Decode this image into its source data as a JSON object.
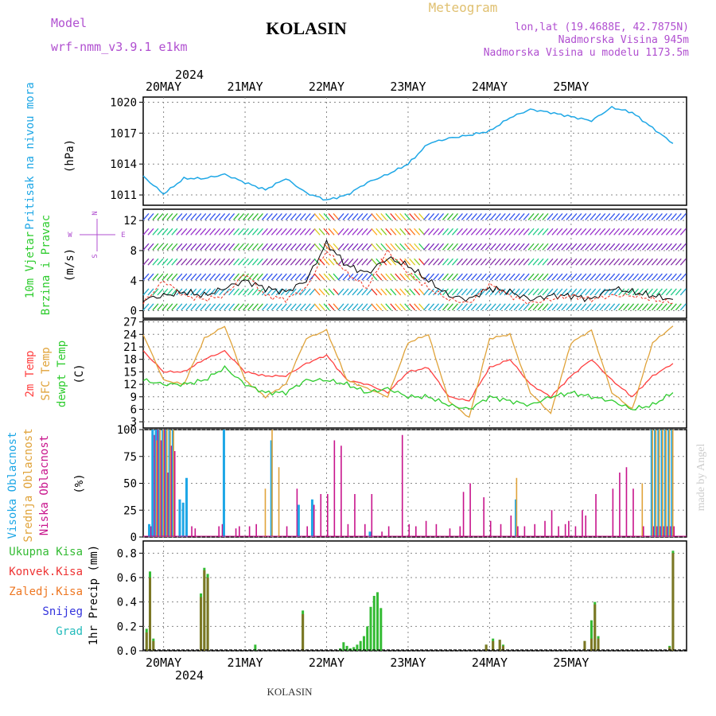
{
  "header": {
    "model_label": "Model",
    "model_name": "wrf-nmm_v3.9.1 e1km",
    "station": "KOLASIN",
    "product": "Meteogram",
    "lonlat": "lon,lat (19.4688E, 42.7875N)",
    "elevation": "Nadmorska Visina 945m",
    "model_elevation": "Nadmorska Visina u modelu 1173.5m",
    "year": "2024",
    "footer_station": "KOLASIN",
    "credit": "made by Angel"
  },
  "days": [
    "20MAY",
    "21MAY",
    "22MAY",
    "23MAY",
    "24MAY",
    "25MAY"
  ],
  "colors": {
    "pressure": "#1ea7e6",
    "temp2m": "#ff4040",
    "sfc": "#e0a33a",
    "dewpt": "#2ecc2e",
    "cloud_high": "#1ea7e6",
    "cloud_mid": "#e0a33a",
    "cloud_low": "#c8148c",
    "precip_total": "#33bb33",
    "precip_conv": "#ee3333",
    "precip_snow": "#3333dd",
    "precip_grad": "#22bbbb"
  },
  "panels": {
    "pressure": {
      "label1": "Pritisak na nivou mora",
      "unit": "(hPa)"
    },
    "wind": {
      "label1": "10m Vjetar",
      "label2": "Brzina i Pravac",
      "unit": "(m/s)",
      "compass_n": "N",
      "compass_w": "W",
      "compass_e": "E",
      "compass_s": "S"
    },
    "temp": {
      "label1": "2m Temp",
      "label2": "SFC Temp",
      "label3": "dewpt Temp",
      "unit": "(C)"
    },
    "cloud": {
      "label1": "Visoka Oblacnost",
      "label2": "Srednja Oblacnost",
      "label3": "Niska Oblacnost",
      "unit": "(%)"
    },
    "precip": {
      "label_total": "Ukupna Kisa",
      "label_conv": "Konvek.Kisa",
      "label_frz": "Zaledj.Kisa",
      "label_snow": "Snijeg",
      "label_grad": "Grad",
      "unit": "1hr Precip (mm)"
    }
  },
  "chart_data": [
    {
      "type": "line",
      "panel": "pressure",
      "xlabel": "",
      "ylabel": "(hPa)",
      "y_ticks": [
        1011,
        1014,
        1017,
        1020
      ],
      "ylim": [
        1010,
        1020.5
      ],
      "x_hours": [
        0,
        6,
        12,
        18,
        24,
        30,
        36,
        42,
        48,
        54,
        60,
        66,
        72,
        78,
        84,
        90,
        96,
        102,
        108,
        114,
        120,
        126,
        132,
        138,
        144,
        150,
        156
      ],
      "values": [
        1012.8,
        1011.1,
        1012.6,
        1012.6,
        1013.0,
        1012.2,
        1011.5,
        1012.6,
        1011.2,
        1010.5,
        1011.0,
        1012.2,
        1013.0,
        1014.0,
        1016.0,
        1016.5,
        1016.8,
        1017.2,
        1018.5,
        1019.3,
        1019.0,
        1018.6,
        1018.2,
        1019.5,
        1019.0,
        1017.5,
        1016.0
      ]
    },
    {
      "type": "scatter",
      "panel": "wind",
      "ylabel": "(m/s)",
      "y_ticks": [
        0,
        4,
        8,
        12
      ],
      "ylim": [
        -1,
        13.5
      ],
      "x_hours": [
        0,
        6,
        12,
        18,
        24,
        30,
        36,
        42,
        48,
        54,
        60,
        66,
        72,
        78,
        84,
        90,
        96,
        102,
        108,
        114,
        120,
        126,
        132,
        138,
        144,
        150,
        156
      ],
      "speed": [
        1.5,
        2,
        2.5,
        2,
        3,
        4,
        3,
        2.5,
        4,
        9,
        6,
        5,
        7,
        6,
        4,
        2,
        1.5,
        3,
        2.5,
        1.5,
        2,
        2,
        1.5,
        3,
        2.5,
        2,
        1.5
      ],
      "gust": [
        1,
        4,
        2,
        1.5,
        2,
        5,
        2,
        1.5,
        3,
        8,
        5,
        3,
        8,
        5,
        3,
        1.5,
        1,
        3.5,
        2,
        1,
        1.5,
        2,
        1.5,
        2,
        2,
        1.5,
        1
      ]
    },
    {
      "type": "line",
      "panel": "temp",
      "ylabel": "(C)",
      "y_ticks": [
        3,
        6,
        9,
        12,
        15,
        18,
        21,
        24,
        27
      ],
      "ylim": [
        1.5,
        27.5
      ],
      "x_hours": [
        0,
        6,
        12,
        18,
        24,
        30,
        36,
        42,
        48,
        54,
        60,
        66,
        72,
        78,
        84,
        90,
        96,
        102,
        108,
        114,
        120,
        126,
        132,
        138,
        144,
        150,
        156
      ],
      "series": [
        {
          "name": "2m Temp",
          "values": [
            20,
            15,
            15,
            18,
            20,
            15,
            14,
            14,
            17,
            19,
            13,
            12,
            10,
            15,
            16,
            9,
            8,
            16,
            18,
            12,
            9,
            14,
            18,
            13,
            9,
            14,
            17
          ]
        },
        {
          "name": "SFC Temp",
          "values": [
            24,
            13,
            12,
            23,
            26,
            13,
            9,
            12,
            23,
            25,
            13,
            11,
            9,
            22,
            24,
            8,
            4,
            23,
            24,
            10,
            5,
            22,
            25,
            10,
            6,
            22,
            26
          ]
        },
        {
          "name": "dewpt Temp",
          "values": [
            13,
            12,
            12,
            13,
            16,
            12,
            10,
            10,
            13,
            13,
            12,
            10,
            11,
            9,
            9,
            7,
            6,
            9,
            8,
            7,
            9,
            10,
            9,
            8,
            6,
            7,
            10
          ]
        }
      ]
    },
    {
      "type": "bar",
      "panel": "cloud",
      "ylabel": "(%)",
      "y_ticks": [
        0,
        25,
        50,
        75,
        100
      ],
      "ylim": [
        0,
        100
      ],
      "bar_hours": [
        2,
        3,
        4,
        5,
        6,
        7,
        8,
        9,
        11,
        12,
        13,
        14,
        15,
        22,
        23,
        24,
        27,
        28,
        31,
        33,
        36,
        38,
        40,
        42,
        45,
        46,
        48,
        50,
        52,
        54,
        56,
        58,
        60,
        62,
        65,
        67,
        70,
        72,
        76,
        78,
        80,
        83,
        86,
        90,
        93,
        94,
        96,
        100,
        102,
        105,
        108,
        110,
        112,
        115,
        118,
        120,
        122,
        124,
        125,
        127,
        129,
        130,
        133,
        138,
        140,
        142,
        144,
        147,
        150,
        151,
        152,
        153,
        154,
        155,
        156
      ],
      "series": [
        {
          "name": "Visoka Oblacnost",
          "values": [
            12,
            100,
            100,
            100,
            100,
            100,
            100,
            100,
            35,
            32,
            55,
            0,
            0,
            0,
            0,
            100,
            0,
            0,
            0,
            0,
            0,
            90,
            0,
            0,
            0,
            30,
            0,
            35,
            0,
            0,
            0,
            0,
            0,
            0,
            0,
            5,
            0,
            0,
            0,
            0,
            0,
            0,
            0,
            0,
            0,
            0,
            0,
            0,
            0,
            0,
            0,
            35,
            0,
            0,
            0,
            0,
            0,
            0,
            0,
            0,
            0,
            0,
            0,
            0,
            0,
            0,
            0,
            0,
            100,
            100,
            100,
            100,
            100,
            100,
            100
          ]
        },
        {
          "name": "Srednja Oblacnost",
          "values": [
            0,
            0,
            90,
            100,
            100,
            100,
            100,
            100,
            0,
            0,
            0,
            0,
            0,
            0,
            0,
            0,
            0,
            0,
            0,
            0,
            45,
            100,
            65,
            0,
            0,
            0,
            0,
            0,
            0,
            0,
            0,
            0,
            0,
            0,
            0,
            0,
            0,
            0,
            0,
            0,
            0,
            0,
            0,
            0,
            0,
            0,
            0,
            0,
            0,
            0,
            0,
            55,
            0,
            0,
            0,
            0,
            0,
            0,
            0,
            0,
            0,
            0,
            0,
            0,
            0,
            0,
            0,
            50,
            100,
            100,
            100,
            100,
            100,
            100,
            100
          ]
        },
        {
          "name": "Niska Oblacnost",
          "values": [
            10,
            95,
            100,
            90,
            100,
            60,
            85,
            80,
            0,
            0,
            0,
            10,
            8,
            10,
            12,
            0,
            8,
            10,
            10,
            12,
            0,
            0,
            0,
            10,
            45,
            0,
            10,
            30,
            40,
            40,
            90,
            85,
            12,
            40,
            12,
            40,
            5,
            10,
            95,
            12,
            10,
            15,
            12,
            8,
            10,
            42,
            50,
            37,
            15,
            12,
            20,
            10,
            10,
            12,
            15,
            25,
            10,
            12,
            15,
            10,
            25,
            20,
            40,
            45,
            60,
            65,
            45,
            10,
            10,
            10,
            10,
            10,
            10,
            10,
            10
          ]
        }
      ]
    },
    {
      "type": "bar",
      "panel": "precip",
      "ylabel": "1hr Precip (mm)",
      "y_ticks": [
        0,
        0.2,
        0.4,
        0.6,
        0.8
      ],
      "ylim": [
        0,
        0.9
      ],
      "bar_hours": [
        1,
        2,
        3,
        17,
        18,
        19,
        33,
        47,
        58,
        59,
        60,
        61,
        62,
        63,
        64,
        65,
        66,
        67,
        68,
        69,
        70,
        101,
        103,
        105,
        106,
        130,
        132,
        133,
        134,
        155,
        156
      ],
      "total": [
        0.18,
        0.65,
        0.1,
        0.47,
        0.68,
        0.63,
        0.05,
        0.33,
        0.02,
        0.07,
        0.04,
        0.02,
        0.03,
        0.05,
        0.08,
        0.12,
        0.2,
        0.36,
        0.45,
        0.48,
        0.35,
        0.05,
        0.1,
        0.09,
        0.05,
        0.08,
        0.25,
        0.4,
        0.12,
        0.04,
        0.82
      ],
      "convective": [
        0.15,
        0.6,
        0.08,
        0.44,
        0.66,
        0.6,
        0,
        0.3,
        0,
        0,
        0,
        0,
        0,
        0,
        0,
        0,
        0,
        0,
        0,
        0,
        0,
        0.05,
        0.08,
        0.09,
        0.04,
        0.08,
        0.1,
        0.38,
        0.1,
        0.03,
        0.8
      ]
    }
  ]
}
